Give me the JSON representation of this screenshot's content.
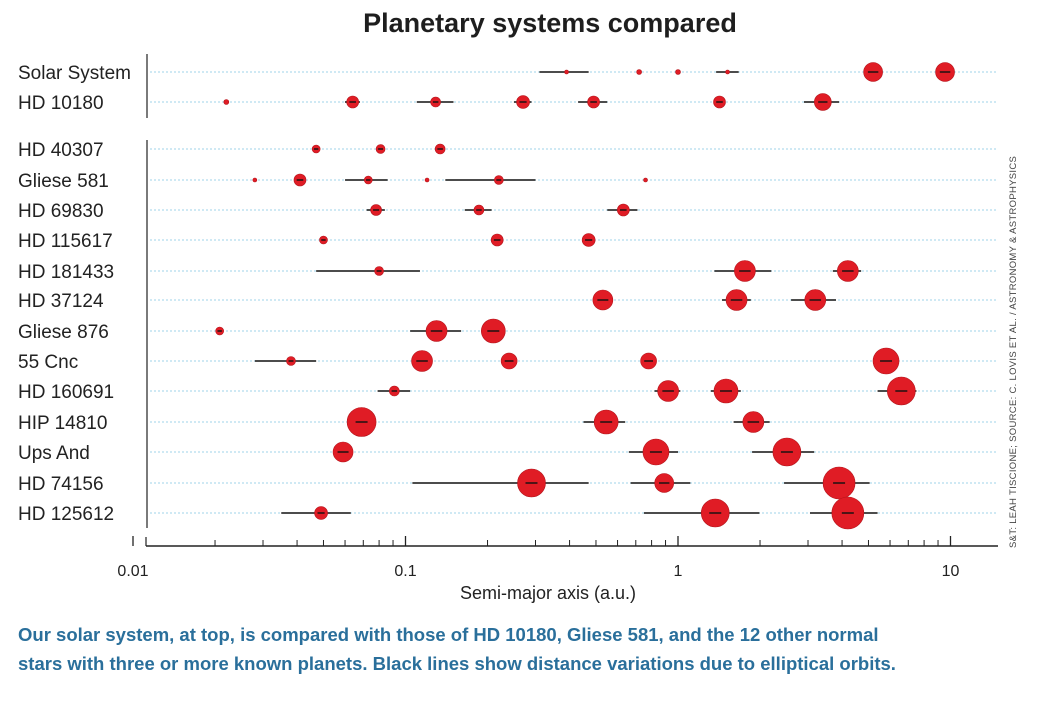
{
  "colors": {
    "planet": "#e01c25",
    "planet_edge": "#b3141b",
    "gridline": "#9fd3e8",
    "orbit_line": "#111111",
    "caption": "#2a6f9b",
    "axis": "#222222"
  },
  "chart_data": {
    "type": "scatter",
    "title": "Planetary systems compared",
    "xlabel": "Semi-major axis (a.u.)",
    "xscale": "log",
    "xlim": [
      0.0085,
      15.5
    ],
    "xticks": [
      0.01,
      0.1,
      1,
      10
    ],
    "xtick_labels": [
      "0.01",
      "0.1",
      "1",
      "10"
    ],
    "grid": "horizontal dotted row guides",
    "credit": "S&T: LEAH TISCIONE; SOURCE: C. LOVIS ET AL. / ASTRONOMY & ASTROPHYSICS",
    "systems": [
      {
        "name": "Solar System",
        "planets": [
          {
            "a": 0.39,
            "size": 2,
            "emin": 0.31,
            "emax": 0.47
          },
          {
            "a": 0.72,
            "size": 2.5,
            "emin": 0.72,
            "emax": 0.73
          },
          {
            "a": 1.0,
            "size": 2.5,
            "emin": 0.98,
            "emax": 1.02
          },
          {
            "a": 1.52,
            "size": 2,
            "emin": 1.38,
            "emax": 1.67
          },
          {
            "a": 5.2,
            "size": 9.5,
            "emin": 4.95,
            "emax": 5.46
          },
          {
            "a": 9.55,
            "size": 9.5,
            "emin": 9.0,
            "emax": 10.1
          }
        ]
      },
      {
        "name": "HD 10180",
        "planets": [
          {
            "a": 0.022,
            "size": 2.5,
            "emin": 0.022,
            "emax": 0.022
          },
          {
            "a": 0.064,
            "size": 6,
            "emin": 0.06,
            "emax": 0.068
          },
          {
            "a": 0.129,
            "size": 5,
            "emin": 0.11,
            "emax": 0.15
          },
          {
            "a": 0.27,
            "size": 6.5,
            "emin": 0.25,
            "emax": 0.29
          },
          {
            "a": 0.49,
            "size": 6,
            "emin": 0.43,
            "emax": 0.55
          },
          {
            "a": 1.42,
            "size": 6,
            "emin": 1.42,
            "emax": 1.42
          },
          {
            "a": 3.4,
            "size": 8.5,
            "emin": 2.9,
            "emax": 3.9
          }
        ]
      },
      {
        "name": "HD 40307",
        "planets": [
          {
            "a": 0.047,
            "size": 4,
            "emin": 0.046,
            "emax": 0.048
          },
          {
            "a": 0.081,
            "size": 4.5,
            "emin": 0.079,
            "emax": 0.083
          },
          {
            "a": 0.134,
            "size": 5,
            "emin": 0.13,
            "emax": 0.138
          }
        ]
      },
      {
        "name": "Gliese 581",
        "planets": [
          {
            "a": 0.028,
            "size": 2,
            "emin": 0.028,
            "emax": 0.028
          },
          {
            "a": 0.041,
            "size": 6,
            "emin": 0.041,
            "emax": 0.041
          },
          {
            "a": 0.073,
            "size": 4,
            "emin": 0.06,
            "emax": 0.086
          },
          {
            "a": 0.12,
            "size": 2,
            "emin": 0.12,
            "emax": 0.12
          },
          {
            "a": 0.22,
            "size": 4.5,
            "emin": 0.14,
            "emax": 0.3
          },
          {
            "a": 0.76,
            "size": 2,
            "emin": 0.76,
            "emax": 0.76
          }
        ]
      },
      {
        "name": "HD 69830",
        "planets": [
          {
            "a": 0.078,
            "size": 5.5,
            "emin": 0.072,
            "emax": 0.084
          },
          {
            "a": 0.186,
            "size": 5,
            "emin": 0.165,
            "emax": 0.207
          },
          {
            "a": 0.63,
            "size": 6,
            "emin": 0.55,
            "emax": 0.71
          }
        ]
      },
      {
        "name": "HD 115617",
        "planets": [
          {
            "a": 0.05,
            "size": 4,
            "emin": 0.05,
            "emax": 0.05
          },
          {
            "a": 0.217,
            "size": 6,
            "emin": 0.217,
            "emax": 0.217
          },
          {
            "a": 0.47,
            "size": 6.5,
            "emin": 0.47,
            "emax": 0.47
          }
        ]
      },
      {
        "name": "HD 181433",
        "planets": [
          {
            "a": 0.08,
            "size": 4.5,
            "emin": 0.047,
            "emax": 0.113
          },
          {
            "a": 1.76,
            "size": 10.5,
            "emin": 1.36,
            "emax": 2.2
          },
          {
            "a": 4.2,
            "size": 10.5,
            "emin": 3.7,
            "emax": 4.7
          }
        ]
      },
      {
        "name": "HD 37124",
        "planets": [
          {
            "a": 0.53,
            "size": 10,
            "emin": 0.51,
            "emax": 0.55
          },
          {
            "a": 1.64,
            "size": 10.5,
            "emin": 1.45,
            "emax": 1.85
          },
          {
            "a": 3.19,
            "size": 10.5,
            "emin": 2.6,
            "emax": 3.8
          }
        ]
      },
      {
        "name": "Gliese 876",
        "planets": [
          {
            "a": 0.0208,
            "size": 4,
            "emin": 0.0208,
            "emax": 0.0208
          },
          {
            "a": 0.13,
            "size": 10.5,
            "emin": 0.104,
            "emax": 0.16
          },
          {
            "a": 0.21,
            "size": 12,
            "emin": 0.2,
            "emax": 0.22
          }
        ]
      },
      {
        "name": "55 Cnc",
        "planets": [
          {
            "a": 0.038,
            "size": 4.5,
            "emin": 0.028,
            "emax": 0.047
          },
          {
            "a": 0.115,
            "size": 10.5,
            "emin": 0.11,
            "emax": 0.12
          },
          {
            "a": 0.24,
            "size": 8,
            "emin": 0.23,
            "emax": 0.25
          },
          {
            "a": 0.78,
            "size": 8,
            "emin": 0.78,
            "emax": 0.78
          },
          {
            "a": 5.8,
            "size": 13,
            "emin": 5.4,
            "emax": 6.2
          }
        ]
      },
      {
        "name": "HD 160691",
        "planets": [
          {
            "a": 0.091,
            "size": 5,
            "emin": 0.079,
            "emax": 0.104
          },
          {
            "a": 0.92,
            "size": 10.5,
            "emin": 0.82,
            "emax": 1.02
          },
          {
            "a": 1.5,
            "size": 12,
            "emin": 1.32,
            "emax": 1.7
          },
          {
            "a": 6.6,
            "size": 14,
            "emin": 5.4,
            "emax": 7.5
          }
        ]
      },
      {
        "name": "HIP 14810",
        "planets": [
          {
            "a": 0.069,
            "size": 14.5,
            "emin": 0.066,
            "emax": 0.072
          },
          {
            "a": 0.545,
            "size": 12,
            "emin": 0.45,
            "emax": 0.64
          },
          {
            "a": 1.89,
            "size": 10.5,
            "emin": 1.6,
            "emax": 2.17
          }
        ]
      },
      {
        "name": "Ups And",
        "planets": [
          {
            "a": 0.059,
            "size": 10,
            "emin": 0.058,
            "emax": 0.06
          },
          {
            "a": 0.83,
            "size": 13,
            "emin": 0.66,
            "emax": 1.0
          },
          {
            "a": 2.51,
            "size": 14,
            "emin": 1.87,
            "emax": 3.16
          }
        ]
      },
      {
        "name": "HD 74156",
        "planets": [
          {
            "a": 0.29,
            "size": 14,
            "emin": 0.106,
            "emax": 0.47
          },
          {
            "a": 0.89,
            "size": 9.5,
            "emin": 0.67,
            "emax": 1.11
          },
          {
            "a": 3.9,
            "size": 16,
            "emin": 2.45,
            "emax": 5.05
          }
        ]
      },
      {
        "name": "HD 125612",
        "planets": [
          {
            "a": 0.049,
            "size": 6.5,
            "emin": 0.035,
            "emax": 0.063
          },
          {
            "a": 1.37,
            "size": 14,
            "emin": 0.75,
            "emax": 1.99
          },
          {
            "a": 4.2,
            "size": 16,
            "emin": 3.05,
            "emax": 5.4
          }
        ]
      }
    ]
  },
  "caption": {
    "line1": "Our solar system, at top, is compared with those of HD 10180, Gliese 581, and the 12 other normal",
    "line2": "stars with three or more known planets. Black lines show distance variations due to elliptical orbits."
  }
}
